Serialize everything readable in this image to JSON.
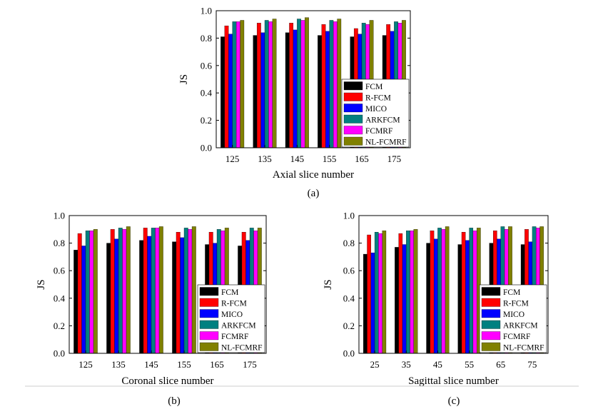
{
  "chart_data": [
    {
      "type": "bar",
      "panel_label": "(a)",
      "xlabel": "Axial slice number",
      "ylabel": "JS",
      "ylim": [
        0,
        1.0
      ],
      "yticks": [
        "0.0",
        "0.2",
        "0.4",
        "0.6",
        "0.8",
        "1.0"
      ],
      "categories": [
        "125",
        "135",
        "145",
        "155",
        "165",
        "175"
      ],
      "legend_position": "bottom-right",
      "series": [
        {
          "name": "FCM",
          "color": "#000000",
          "values": [
            0.81,
            0.82,
            0.84,
            0.82,
            0.81,
            0.82
          ]
        },
        {
          "name": "R-FCM",
          "color": "#ff0000",
          "values": [
            0.89,
            0.91,
            0.91,
            0.9,
            0.87,
            0.9
          ]
        },
        {
          "name": "MICO",
          "color": "#0000ff",
          "values": [
            0.83,
            0.84,
            0.86,
            0.85,
            0.83,
            0.85
          ]
        },
        {
          "name": "ARKFCM",
          "color": "#008080",
          "values": [
            0.92,
            0.93,
            0.94,
            0.93,
            0.91,
            0.92
          ]
        },
        {
          "name": "FCMRF",
          "color": "#ff00ff",
          "values": [
            0.92,
            0.92,
            0.93,
            0.92,
            0.9,
            0.91
          ]
        },
        {
          "name": "NL-FCMRF",
          "color": "#808000",
          "values": [
            0.93,
            0.94,
            0.95,
            0.94,
            0.93,
            0.93
          ]
        }
      ]
    },
    {
      "type": "bar",
      "panel_label": "(b)",
      "xlabel": "Coronal slice number",
      "ylabel": "JS",
      "ylim": [
        0,
        1.0
      ],
      "yticks": [
        "0.0",
        "0.2",
        "0.4",
        "0.6",
        "0.8",
        "1.0"
      ],
      "categories": [
        "125",
        "135",
        "145",
        "155",
        "165",
        "175"
      ],
      "legend_position": "bottom-right",
      "series": [
        {
          "name": "FCM",
          "color": "#000000",
          "values": [
            0.75,
            0.8,
            0.82,
            0.81,
            0.79,
            0.78
          ]
        },
        {
          "name": "R-FCM",
          "color": "#ff0000",
          "values": [
            0.87,
            0.9,
            0.91,
            0.88,
            0.88,
            0.88
          ]
        },
        {
          "name": "MICO",
          "color": "#0000ff",
          "values": [
            0.78,
            0.83,
            0.85,
            0.84,
            0.8,
            0.82
          ]
        },
        {
          "name": "ARKFCM",
          "color": "#008080",
          "values": [
            0.89,
            0.91,
            0.91,
            0.91,
            0.9,
            0.91
          ]
        },
        {
          "name": "FCMRF",
          "color": "#ff00ff",
          "values": [
            0.89,
            0.9,
            0.91,
            0.9,
            0.89,
            0.89
          ]
        },
        {
          "name": "NL-FCMRF",
          "color": "#808000",
          "values": [
            0.9,
            0.92,
            0.92,
            0.92,
            0.91,
            0.91
          ]
        }
      ]
    },
    {
      "type": "bar",
      "panel_label": "(c)",
      "xlabel": "Sagittal slice number",
      "ylabel": "JS",
      "ylim": [
        0,
        1.0
      ],
      "yticks": [
        "0.0",
        "0.2",
        "0.4",
        "0.6",
        "0.8",
        "1.0"
      ],
      "categories": [
        "25",
        "35",
        "45",
        "55",
        "65",
        "75"
      ],
      "legend_position": "bottom-right",
      "series": [
        {
          "name": "FCM",
          "color": "#000000",
          "values": [
            0.72,
            0.77,
            0.8,
            0.79,
            0.8,
            0.79
          ]
        },
        {
          "name": "R-FCM",
          "color": "#ff0000",
          "values": [
            0.86,
            0.87,
            0.89,
            0.88,
            0.89,
            0.9
          ]
        },
        {
          "name": "MICO",
          "color": "#0000ff",
          "values": [
            0.73,
            0.79,
            0.83,
            0.82,
            0.83,
            0.81
          ]
        },
        {
          "name": "ARKFCM",
          "color": "#008080",
          "values": [
            0.88,
            0.89,
            0.91,
            0.91,
            0.92,
            0.92
          ]
        },
        {
          "name": "FCMRF",
          "color": "#ff00ff",
          "values": [
            0.87,
            0.89,
            0.9,
            0.89,
            0.9,
            0.91
          ]
        },
        {
          "name": "NL-FCMRF",
          "color": "#808000",
          "values": [
            0.89,
            0.9,
            0.92,
            0.91,
            0.92,
            0.92
          ]
        }
      ]
    }
  ]
}
